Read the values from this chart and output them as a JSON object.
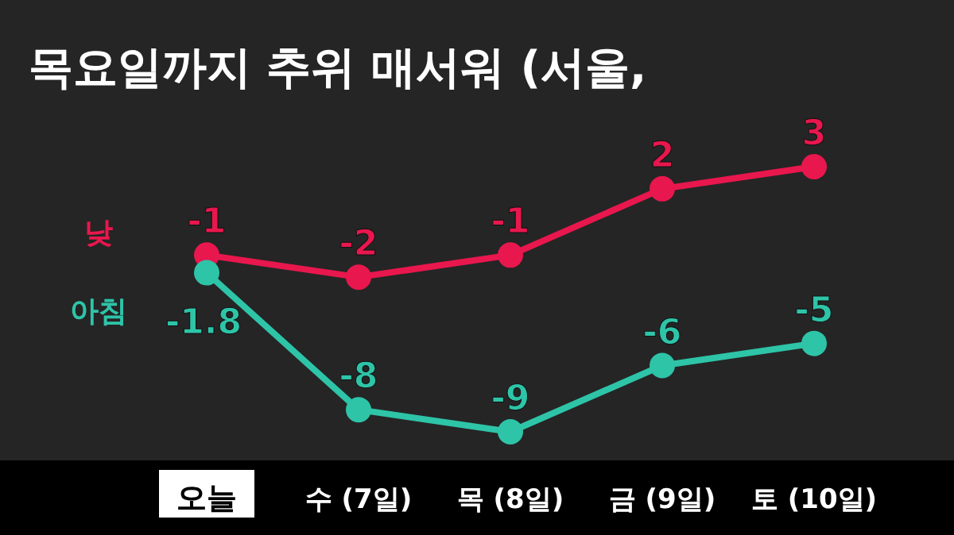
{
  "chart_data": {
    "type": "line",
    "title": "목요일까지 추위 매서워 (서울,",
    "categories": [
      "오늘",
      "수 (7일)",
      "목 (8일)",
      "금 (9일)",
      "토 (10일)"
    ],
    "series": [
      {
        "name": "낮",
        "color": "#e8174d",
        "values": [
          -1,
          -2,
          -1,
          2,
          3
        ]
      },
      {
        "name": "아침",
        "color": "#2ec4a8",
        "values": [
          -1.8,
          -8,
          -9,
          -6,
          -5
        ]
      }
    ],
    "data_labels": true,
    "marker": "circle",
    "line_style": "solid",
    "legend": false
  }
}
